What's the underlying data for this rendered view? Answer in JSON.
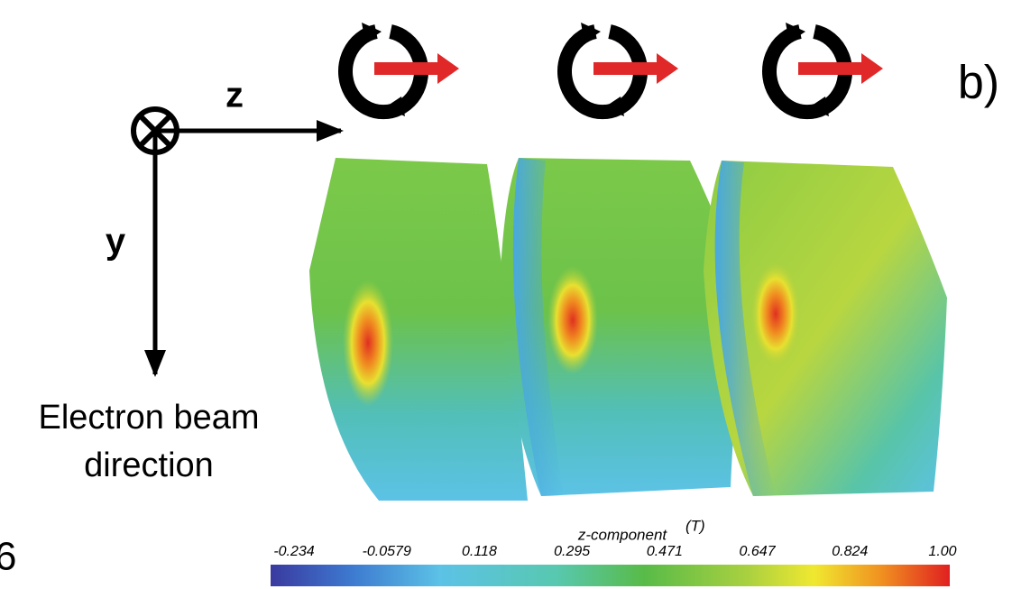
{
  "axes": {
    "z_label": "z",
    "y_label": "y",
    "beam_label": [
      "Electron beam",
      "direction"
    ]
  },
  "panel_label": "b)",
  "page_number": "6",
  "colorbar": {
    "title": "z-component",
    "unit": "(T)",
    "ticks": [
      "-0.234",
      "-0.0579",
      "0.118",
      "0.295",
      "0.471",
      "0.647",
      "0.824",
      "1.00"
    ]
  }
}
